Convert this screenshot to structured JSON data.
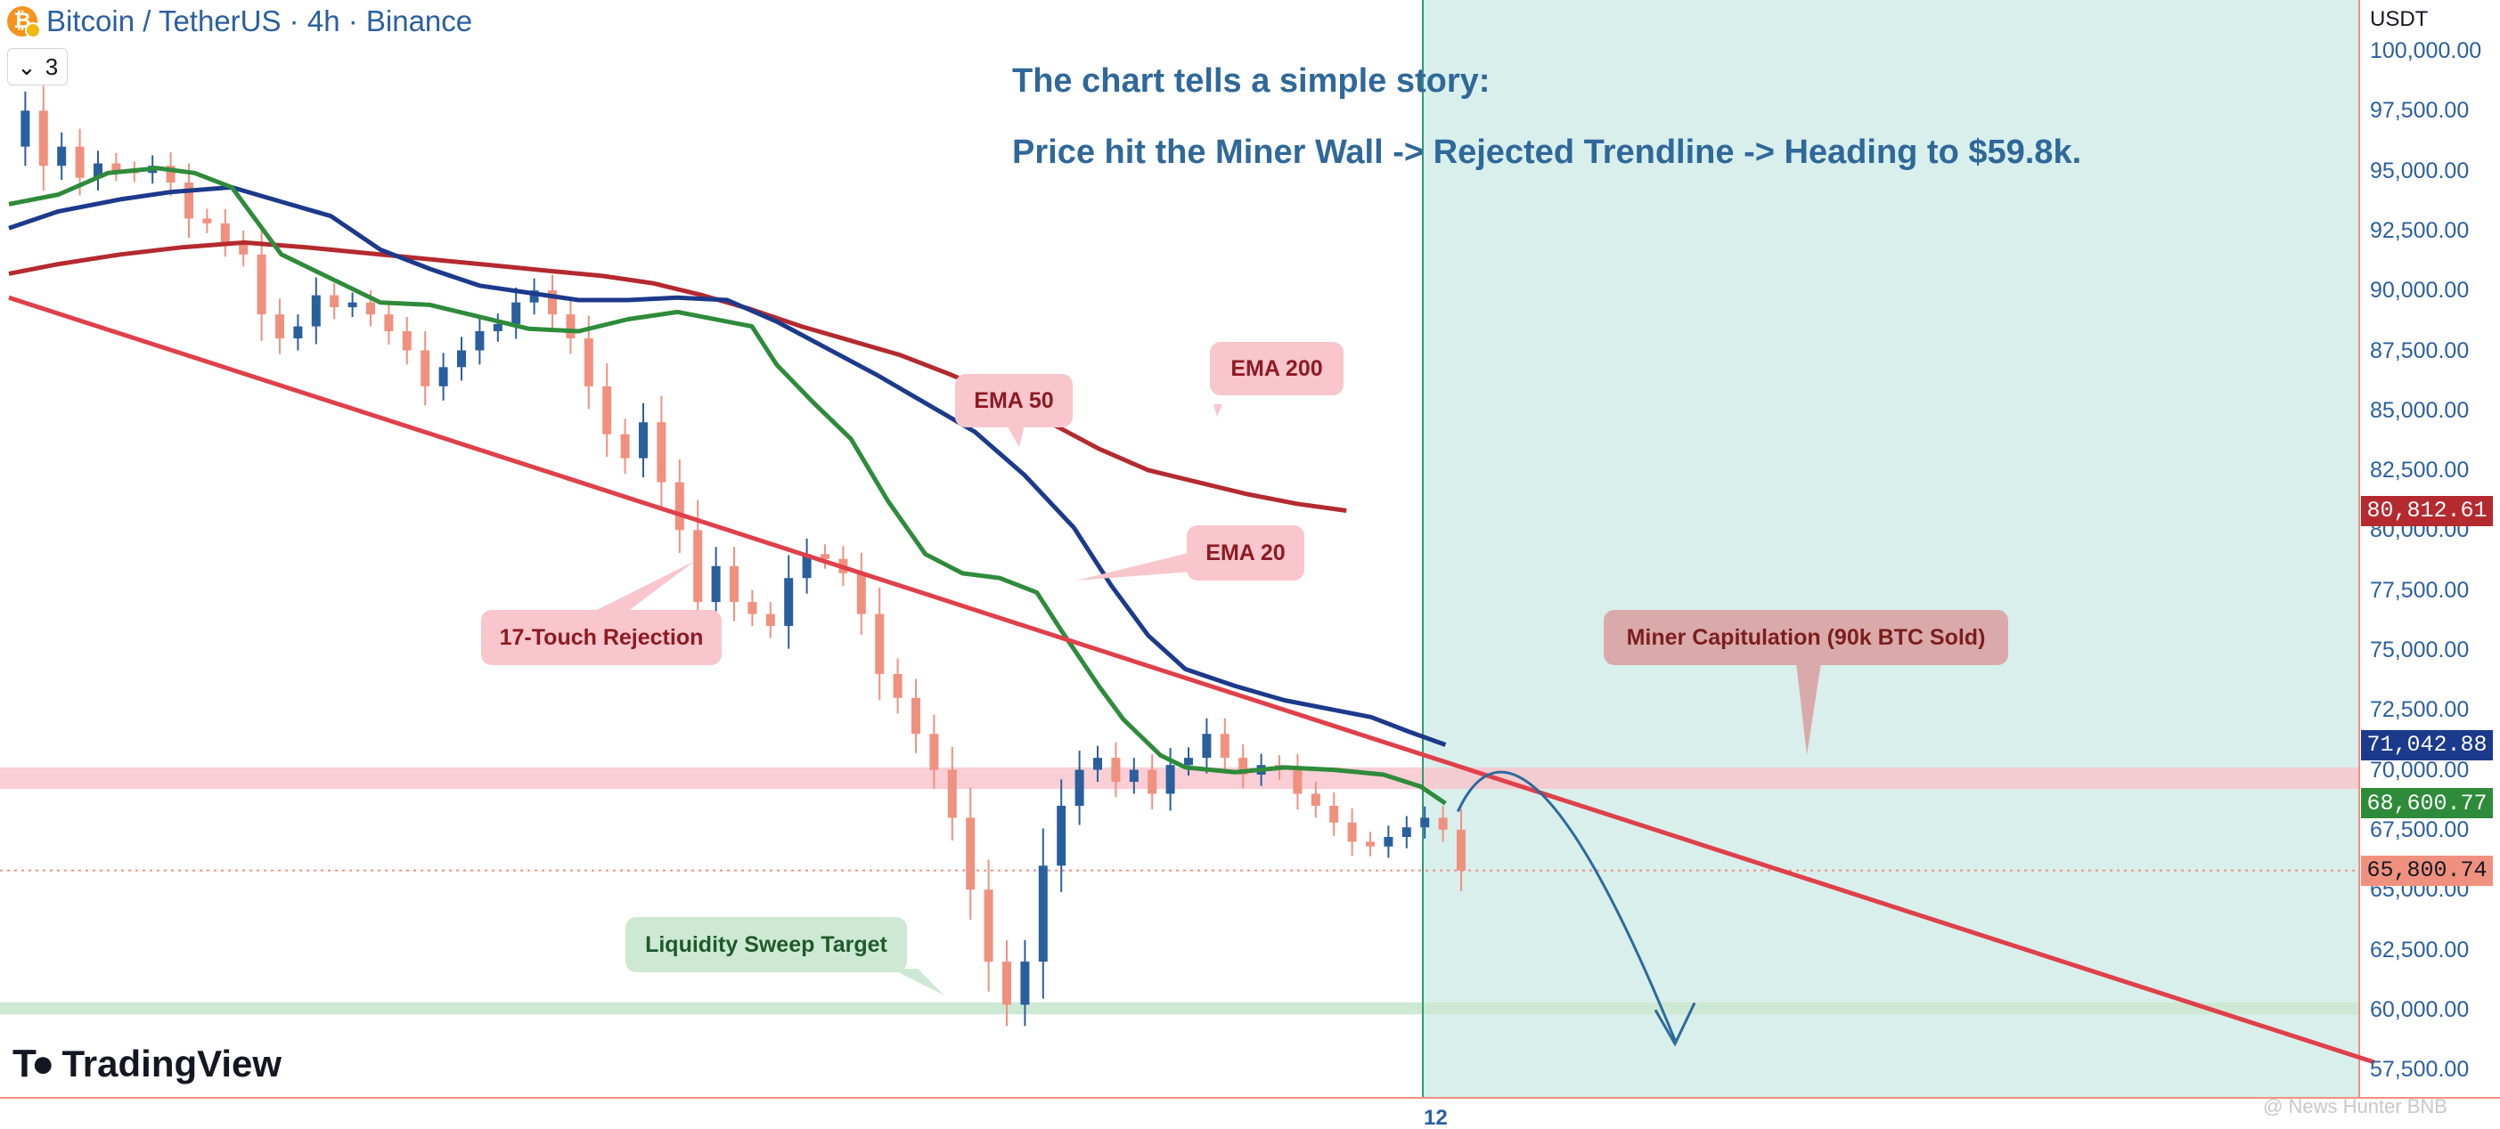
{
  "header": {
    "symbol_icon": "bitcoin-icon",
    "title": "Bitcoin / TetherUS · 4h · Binance",
    "indicator_count": "3"
  },
  "story": {
    "line1": "The chart tells a simple story:",
    "line2": "Price hit the Miner Wall -> Rejected Trendline -> Heading to $59.8k."
  },
  "callouts": {
    "ema200": "EMA 200",
    "ema50": "EMA 50",
    "ema20": "EMA 20",
    "touch_rejection": "17-Touch Rejection",
    "miner_capitulation": "Miner Capitulation (90k BTC Sold)",
    "liquidity_target": "Liquidity Sweep Target"
  },
  "price_axis": {
    "unit": "USDT",
    "ticks": [
      "100,000.00",
      "97,500.00",
      "95,000.00",
      "92,500.00",
      "90,000.00",
      "87,500.00",
      "85,000.00",
      "82,500.00",
      "80,000.00",
      "77,500.00",
      "75,000.00",
      "72,500.00",
      "70,000.00",
      "67,500.00",
      "65,000.00",
      "62,500.00",
      "60,000.00",
      "57,500.00"
    ],
    "labels": {
      "ema200": "80,812.61",
      "ema50": "71,042.88",
      "ema20": "68,600.77",
      "last": "65,800.74"
    }
  },
  "time_axis": {
    "tick": "12"
  },
  "branding": {
    "logo_text": "TradingView",
    "logo_icon": "tradingview-logo-icon"
  },
  "watermark": "@ News Hunter BNB",
  "colors": {
    "ema20": "#2e8b3a",
    "ema50": "#1c3a8c",
    "ema200": "#b42a2f",
    "trendline": "#e0404a",
    "up_candle": "#2a5f9e",
    "down_candle": "#f0917f",
    "projection_zone": "#d8efec",
    "miner_zone": "#f8c6cc",
    "liquidity_zone": "#cde9d3",
    "projection_arrow": "#2c6a9c",
    "axis_text": "#2a5f9e"
  },
  "chart_data": {
    "type": "candlestick",
    "title": "Bitcoin / TetherUS · 4h · Binance",
    "ylim": [
      57000,
      100500
    ],
    "y_ticks": [
      100000,
      97500,
      95000,
      92500,
      90000,
      87500,
      85000,
      82500,
      80000,
      77500,
      75000,
      72500,
      70000,
      67500,
      65000,
      62500,
      60000,
      57500
    ],
    "ema20_last": 68600.77,
    "ema50_last": 71042.88,
    "ema200_last": 80812.61,
    "last_price": 65800.74,
    "price_path": [
      96000,
      97500,
      95200,
      96000,
      94700,
      95300,
      95000,
      94900,
      95200,
      94500,
      93000,
      92800,
      92000,
      91500,
      89000,
      88000,
      88500,
      89800,
      89300,
      89500,
      89000,
      88300,
      87500,
      86000,
      86800,
      87500,
      88300,
      88600,
      89500,
      90000,
      89000,
      88000,
      86000,
      84000,
      83000,
      84500,
      82000,
      80000,
      77000,
      78500,
      77000,
      76500,
      76000,
      78000,
      79000,
      78800,
      78200,
      76500,
      74000,
      73000,
      71500,
      70000,
      68000,
      65000,
      62000,
      60200,
      62000,
      66000,
      68500,
      70000,
      70500,
      69500,
      70000,
      69000,
      70200,
      70500,
      71500,
      70500,
      69800,
      70200,
      70000,
      69000,
      68500,
      67800,
      67000,
      66800,
      67200,
      67600,
      68000,
      67500,
      65800
    ],
    "ema20": [
      {
        "x": 0,
        "y": 93600
      },
      {
        "x": 4,
        "y": 94000
      },
      {
        "x": 8,
        "y": 94900
      },
      {
        "x": 12,
        "y": 95100
      },
      {
        "x": 15,
        "y": 94900
      },
      {
        "x": 18,
        "y": 94300
      },
      {
        "x": 22,
        "y": 91500
      },
      {
        "x": 26,
        "y": 90500
      },
      {
        "x": 30,
        "y": 89500
      },
      {
        "x": 34,
        "y": 89400
      },
      {
        "x": 38,
        "y": 88900
      },
      {
        "x": 42,
        "y": 88400
      },
      {
        "x": 46,
        "y": 88300
      },
      {
        "x": 50,
        "y": 88800
      },
      {
        "x": 54,
        "y": 89100
      },
      {
        "x": 58,
        "y": 88700
      },
      {
        "x": 60,
        "y": 88500
      },
      {
        "x": 62,
        "y": 86900
      },
      {
        "x": 65,
        "y": 85300
      },
      {
        "x": 68,
        "y": 83800
      },
      {
        "x": 71,
        "y": 81200
      },
      {
        "x": 74,
        "y": 79000
      },
      {
        "x": 77,
        "y": 78200
      },
      {
        "x": 80,
        "y": 78000
      },
      {
        "x": 83,
        "y": 77400
      },
      {
        "x": 85,
        "y": 75800
      },
      {
        "x": 88,
        "y": 73500
      },
      {
        "x": 90,
        "y": 72100
      },
      {
        "x": 93,
        "y": 70600
      },
      {
        "x": 95,
        "y": 70100
      },
      {
        "x": 99,
        "y": 69900
      },
      {
        "x": 103,
        "y": 70100
      },
      {
        "x": 107,
        "y": 70000
      },
      {
        "x": 111,
        "y": 69800
      },
      {
        "x": 114,
        "y": 69300
      },
      {
        "x": 116,
        "y": 68600
      }
    ],
    "ema50": [
      {
        "x": 0,
        "y": 92600
      },
      {
        "x": 4,
        "y": 93300
      },
      {
        "x": 9,
        "y": 93800
      },
      {
        "x": 13,
        "y": 94100
      },
      {
        "x": 18,
        "y": 94300
      },
      {
        "x": 22,
        "y": 93700
      },
      {
        "x": 26,
        "y": 93100
      },
      {
        "x": 30,
        "y": 91700
      },
      {
        "x": 34,
        "y": 90900
      },
      {
        "x": 38,
        "y": 90200
      },
      {
        "x": 42,
        "y": 89900
      },
      {
        "x": 46,
        "y": 89600
      },
      {
        "x": 50,
        "y": 89600
      },
      {
        "x": 54,
        "y": 89700
      },
      {
        "x": 58,
        "y": 89600
      },
      {
        "x": 62,
        "y": 88700
      },
      {
        "x": 66,
        "y": 87600
      },
      {
        "x": 70,
        "y": 86500
      },
      {
        "x": 74,
        "y": 85300
      },
      {
        "x": 78,
        "y": 84100
      },
      {
        "x": 82,
        "y": 82300
      },
      {
        "x": 86,
        "y": 80100
      },
      {
        "x": 89,
        "y": 77700
      },
      {
        "x": 92,
        "y": 75600
      },
      {
        "x": 95,
        "y": 74200
      },
      {
        "x": 99,
        "y": 73500
      },
      {
        "x": 103,
        "y": 72900
      },
      {
        "x": 107,
        "y": 72500
      },
      {
        "x": 110,
        "y": 72200
      },
      {
        "x": 113,
        "y": 71600
      },
      {
        "x": 116,
        "y": 71042
      }
    ],
    "ema200": [
      {
        "x": 0,
        "y": 90700
      },
      {
        "x": 4,
        "y": 91100
      },
      {
        "x": 9,
        "y": 91500
      },
      {
        "x": 14,
        "y": 91800
      },
      {
        "x": 19,
        "y": 92000
      },
      {
        "x": 24,
        "y": 91800
      },
      {
        "x": 28,
        "y": 91600
      },
      {
        "x": 32,
        "y": 91400
      },
      {
        "x": 36,
        "y": 91200
      },
      {
        "x": 40,
        "y": 91000
      },
      {
        "x": 44,
        "y": 90800
      },
      {
        "x": 48,
        "y": 90600
      },
      {
        "x": 52,
        "y": 90300
      },
      {
        "x": 56,
        "y": 89800
      },
      {
        "x": 60,
        "y": 89200
      },
      {
        "x": 64,
        "y": 88500
      },
      {
        "x": 68,
        "y": 87900
      },
      {
        "x": 72,
        "y": 87300
      },
      {
        "x": 76,
        "y": 86500
      },
      {
        "x": 80,
        "y": 85600
      },
      {
        "x": 84,
        "y": 84500
      },
      {
        "x": 88,
        "y": 83400
      },
      {
        "x": 92,
        "y": 82500
      },
      {
        "x": 96,
        "y": 82000
      },
      {
        "x": 100,
        "y": 81500
      },
      {
        "x": 104,
        "y": 81100
      },
      {
        "x": 108,
        "y": 80812
      }
    ],
    "trendline": {
      "start": {
        "x": 0,
        "y": 89700
      },
      "end": {
        "x": 191,
        "y": 57800
      }
    },
    "zones": [
      {
        "name": "Miner Wall",
        "y_from": 69200,
        "y_to": 70100
      },
      {
        "name": "Liquidity Sweep Target",
        "y_from": 59800,
        "y_to": 60300
      }
    ],
    "projection": {
      "from": 69000,
      "to": 60500
    }
  }
}
